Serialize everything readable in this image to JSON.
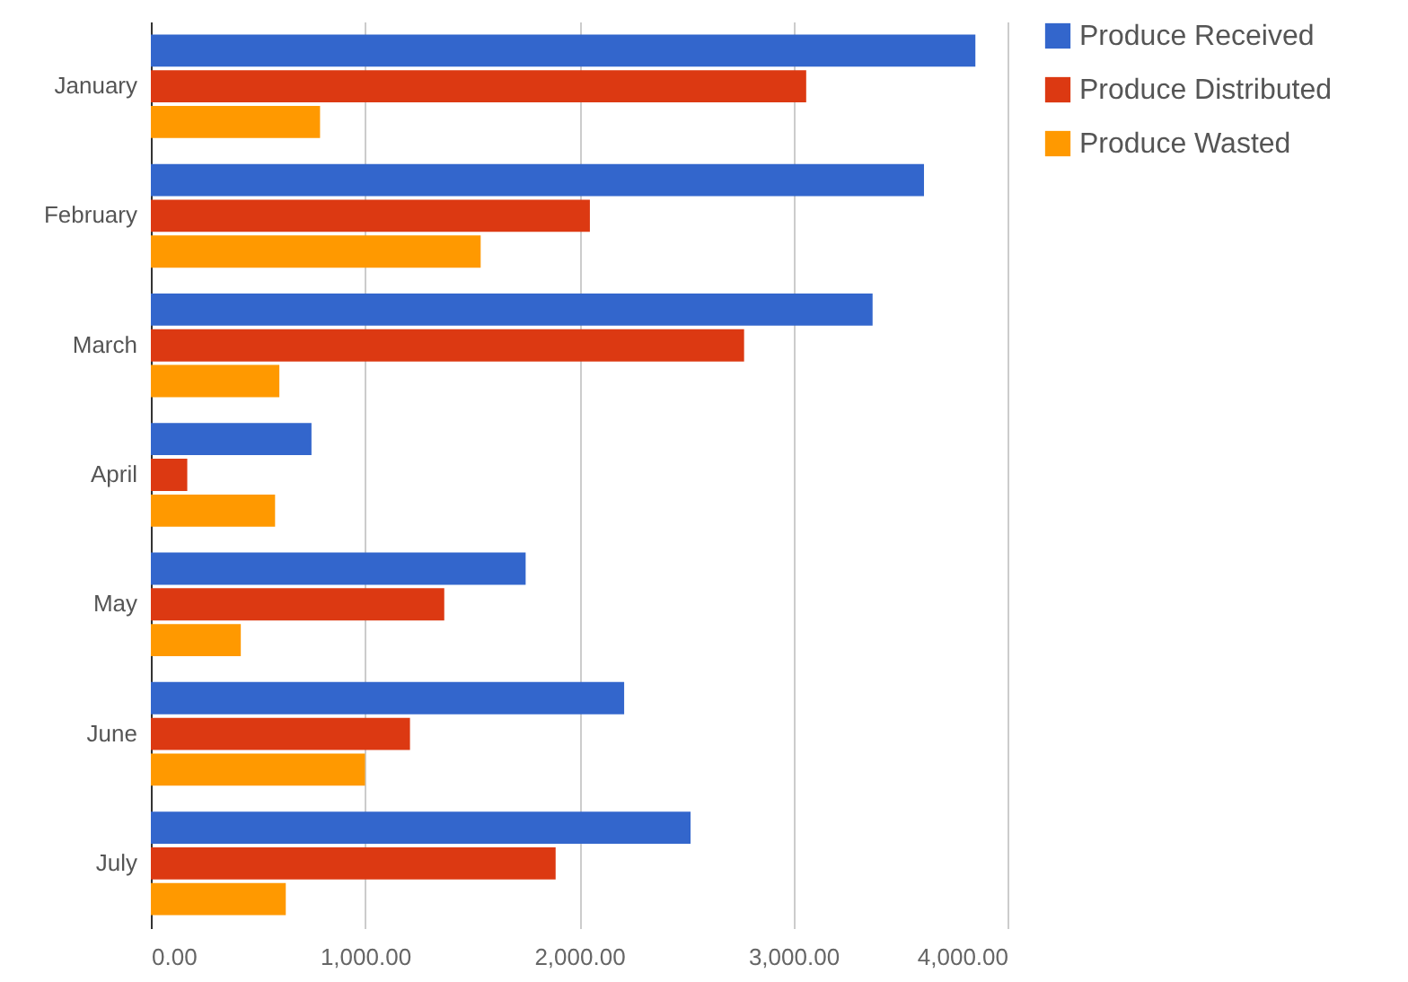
{
  "chart_data": {
    "type": "bar",
    "orientation": "horizontal",
    "categories": [
      "January",
      "February",
      "March",
      "April",
      "May",
      "June",
      "July"
    ],
    "series": [
      {
        "name": "Produce Received",
        "color": "#3366cc",
        "values": [
          3850,
          3610,
          3370,
          750,
          1750,
          2210,
          2520
        ]
      },
      {
        "name": "Produce Distributed",
        "color": "#dc3912",
        "values": [
          3060,
          2050,
          2770,
          170,
          1370,
          1210,
          1890
        ]
      },
      {
        "name": "Produce Wasted",
        "color": "#ff9900",
        "values": [
          790,
          1540,
          600,
          580,
          420,
          1000,
          630
        ]
      }
    ],
    "xlim": [
      0,
      4000
    ],
    "xticks": [
      {
        "value": 0,
        "label": "0.00"
      },
      {
        "value": 1000,
        "label": "1,000.00"
      },
      {
        "value": 2000,
        "label": "2,000.00"
      },
      {
        "value": 3000,
        "label": "3,000.00"
      },
      {
        "value": 4000,
        "label": "4,000.00"
      }
    ],
    "grid": "x",
    "legend": "top right"
  }
}
